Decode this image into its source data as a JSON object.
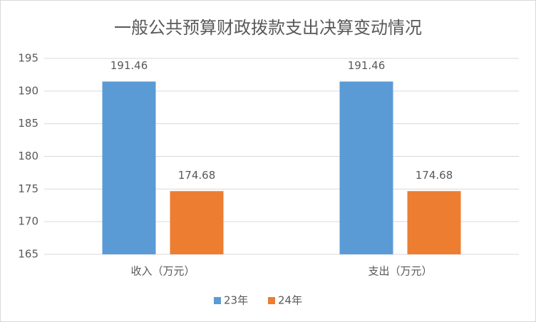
{
  "chart_data": {
    "type": "bar",
    "title": "一般公共预算财政拨款支出决算变动情况",
    "categories": [
      "收入（万元）",
      "支出（万元）"
    ],
    "series": [
      {
        "name": "23年",
        "color": "#5b9bd5",
        "values": [
          191.46,
          191.46
        ]
      },
      {
        "name": "24年",
        "color": "#ed7d31",
        "values": [
          174.68,
          174.68
        ]
      }
    ],
    "ylim": [
      165,
      195
    ],
    "yticks": [
      165,
      170,
      175,
      180,
      185,
      190,
      195
    ],
    "grid": true,
    "legend": "bottom"
  }
}
